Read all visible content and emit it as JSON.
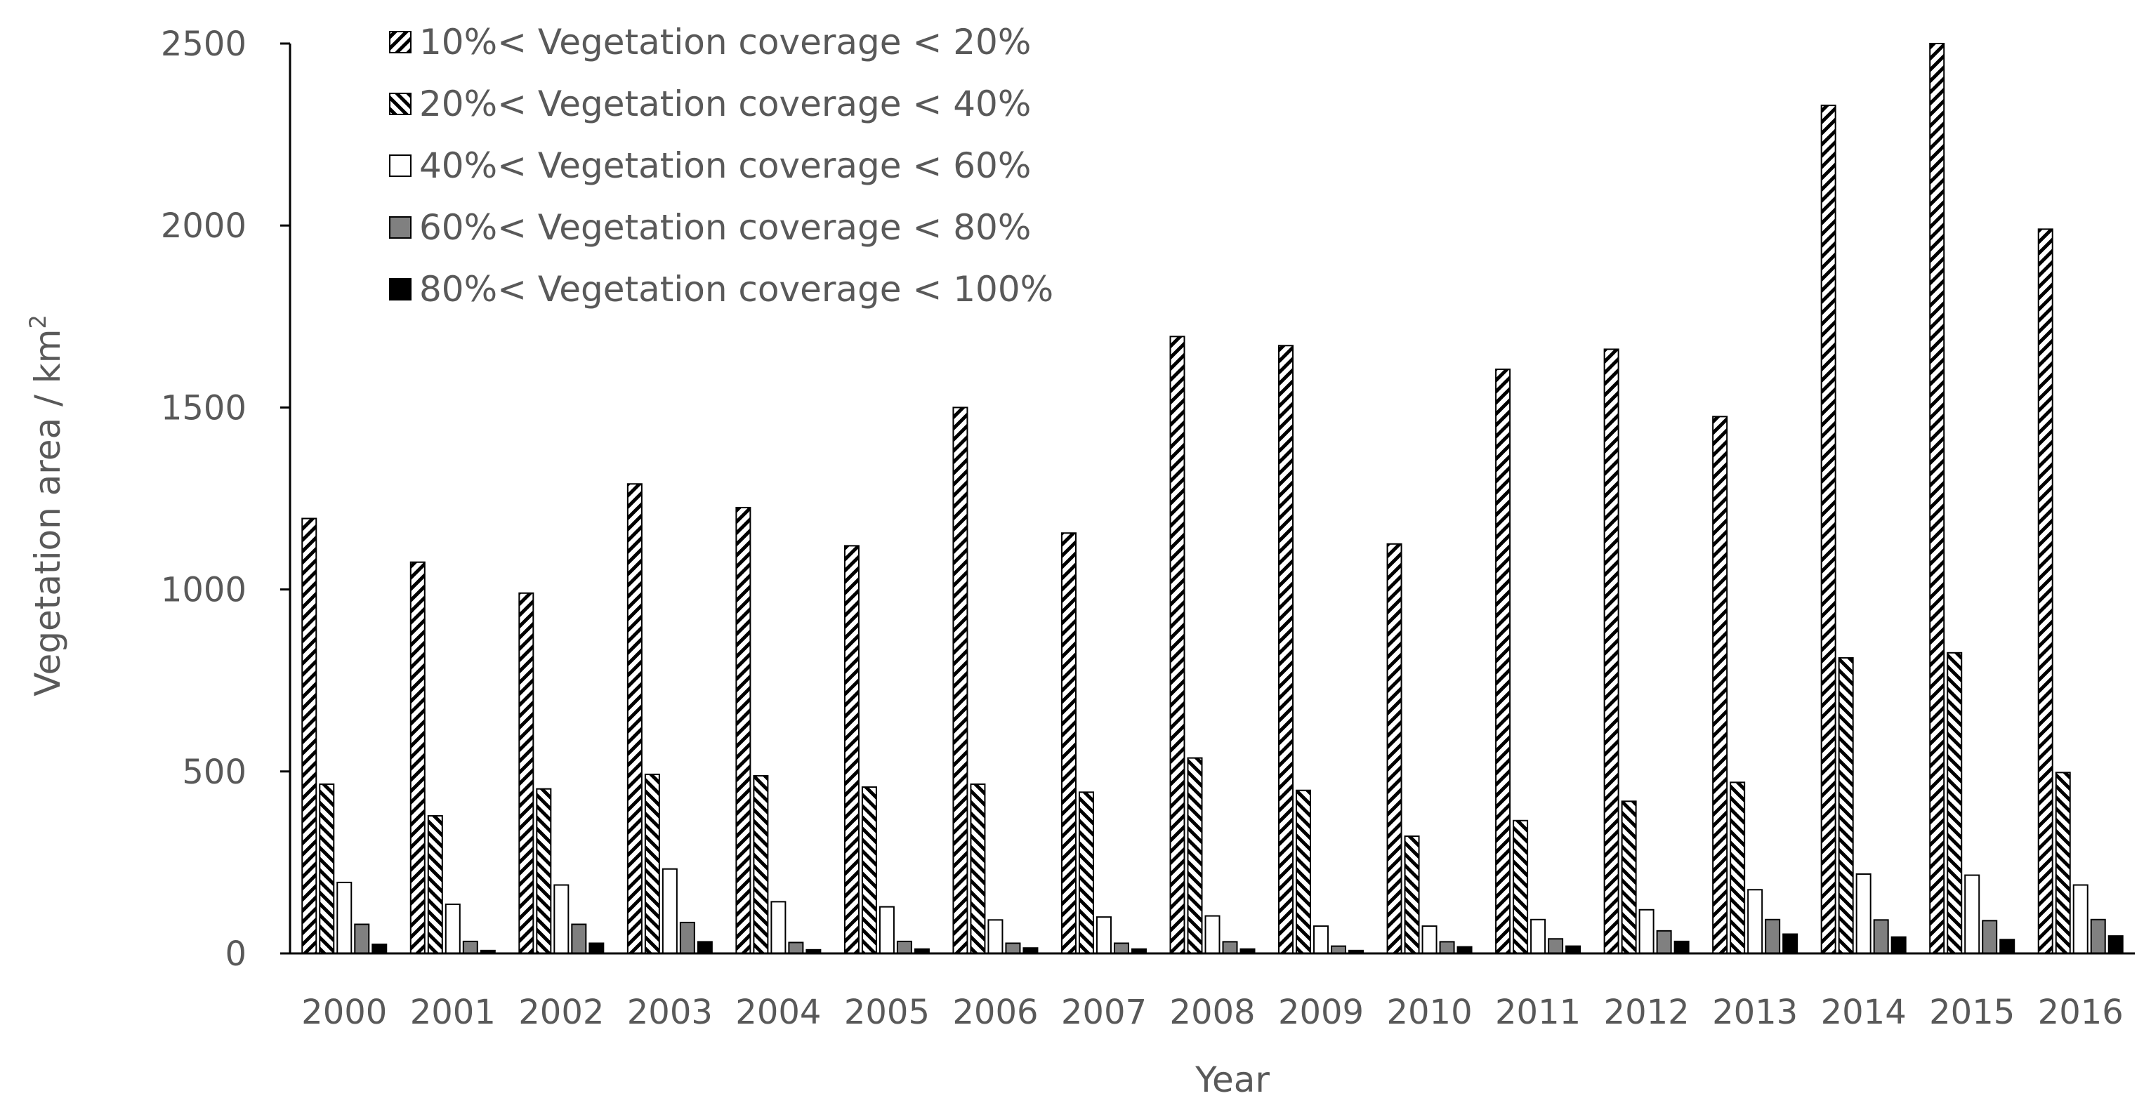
{
  "chart_data": {
    "type": "bar",
    "title": "",
    "xlabel": "Year",
    "ylabel_main": "Vegetation area / km",
    "ylabel_sup": "2",
    "ylim": [
      0,
      2500
    ],
    "yticks": [
      "0",
      "500",
      "1000",
      "1500",
      "2000",
      "2500"
    ],
    "categories": [
      "2000",
      "2001",
      "2002",
      "2003",
      "2004",
      "2005",
      "2006",
      "2007",
      "2008",
      "2009",
      "2010",
      "2011",
      "2012",
      "2013",
      "2014",
      "2015",
      "2016"
    ],
    "legend_position": "top-left",
    "series": [
      {
        "name": "10%< Vegetation coverage < 20%",
        "pattern": "hatch-up",
        "values": [
          1195,
          1075,
          990,
          1290,
          1225,
          1120,
          1500,
          1155,
          1695,
          1670,
          1125,
          1605,
          1660,
          1475,
          2330,
          2500,
          1990
        ]
      },
      {
        "name": "20%< Vegetation coverage < 40%",
        "pattern": "hatch-down",
        "values": [
          465,
          378,
          452,
          492,
          488,
          457,
          465,
          443,
          537,
          448,
          322,
          365,
          418,
          470,
          812,
          826,
          497
        ]
      },
      {
        "name": "40%< Vegetation coverage < 60%",
        "pattern": "white",
        "values": [
          195,
          135,
          188,
          232,
          142,
          128,
          92,
          100,
          103,
          75,
          75,
          93,
          120,
          175,
          218,
          215,
          188
        ]
      },
      {
        "name": "60%< Vegetation coverage < 80%",
        "pattern": "gray",
        "values": [
          80,
          33,
          80,
          85,
          30,
          33,
          28,
          28,
          32,
          20,
          32,
          40,
          62,
          93,
          92,
          90,
          93
        ]
      },
      {
        "name": "80%< Vegetation coverage < 100%",
        "pattern": "black",
        "values": [
          25,
          8,
          28,
          32,
          10,
          12,
          15,
          12,
          12,
          8,
          18,
          20,
          33,
          53,
          45,
          38,
          48
        ]
      }
    ]
  },
  "colors": {
    "gray_fill": "#808080",
    "black_fill": "#000000",
    "white_fill": "#ffffff",
    "text": "#595959",
    "axis": "#000000"
  }
}
